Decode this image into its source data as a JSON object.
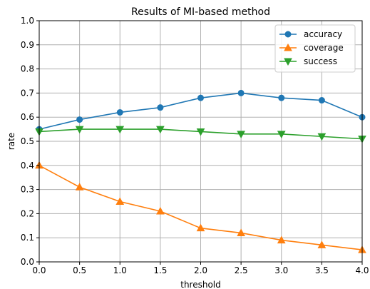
{
  "chart_data": {
    "type": "line",
    "title": "Results of MI-based method",
    "xlabel": "threshold",
    "ylabel": "rate",
    "x": [
      0.0,
      0.5,
      1.0,
      1.5,
      2.0,
      2.5,
      3.0,
      3.5,
      4.0
    ],
    "xlim": [
      0.0,
      4.0
    ],
    "ylim": [
      0.0,
      1.0
    ],
    "xticks": [
      "0.0",
      "0.5",
      "1.0",
      "1.5",
      "2.0",
      "2.5",
      "3.0",
      "3.5",
      "4.0"
    ],
    "yticks": [
      "0.0",
      "0.1",
      "0.2",
      "0.3",
      "0.4",
      "0.5",
      "0.6",
      "0.7",
      "0.8",
      "0.9",
      "1.0"
    ],
    "grid": true,
    "legend_position": "top-right",
    "series": [
      {
        "name": "accuracy",
        "color": "#1f77b4",
        "marker": "circle",
        "values": [
          0.55,
          0.59,
          0.62,
          0.64,
          0.68,
          0.7,
          0.68,
          0.67,
          0.6
        ]
      },
      {
        "name": "coverage",
        "color": "#ff7f0e",
        "marker": "triangle-up",
        "values": [
          0.4,
          0.31,
          0.25,
          0.21,
          0.14,
          0.12,
          0.09,
          0.07,
          0.05
        ]
      },
      {
        "name": "success",
        "color": "#2ca02c",
        "marker": "triangle-down",
        "values": [
          0.54,
          0.55,
          0.55,
          0.55,
          0.54,
          0.53,
          0.53,
          0.52,
          0.51
        ]
      }
    ]
  }
}
